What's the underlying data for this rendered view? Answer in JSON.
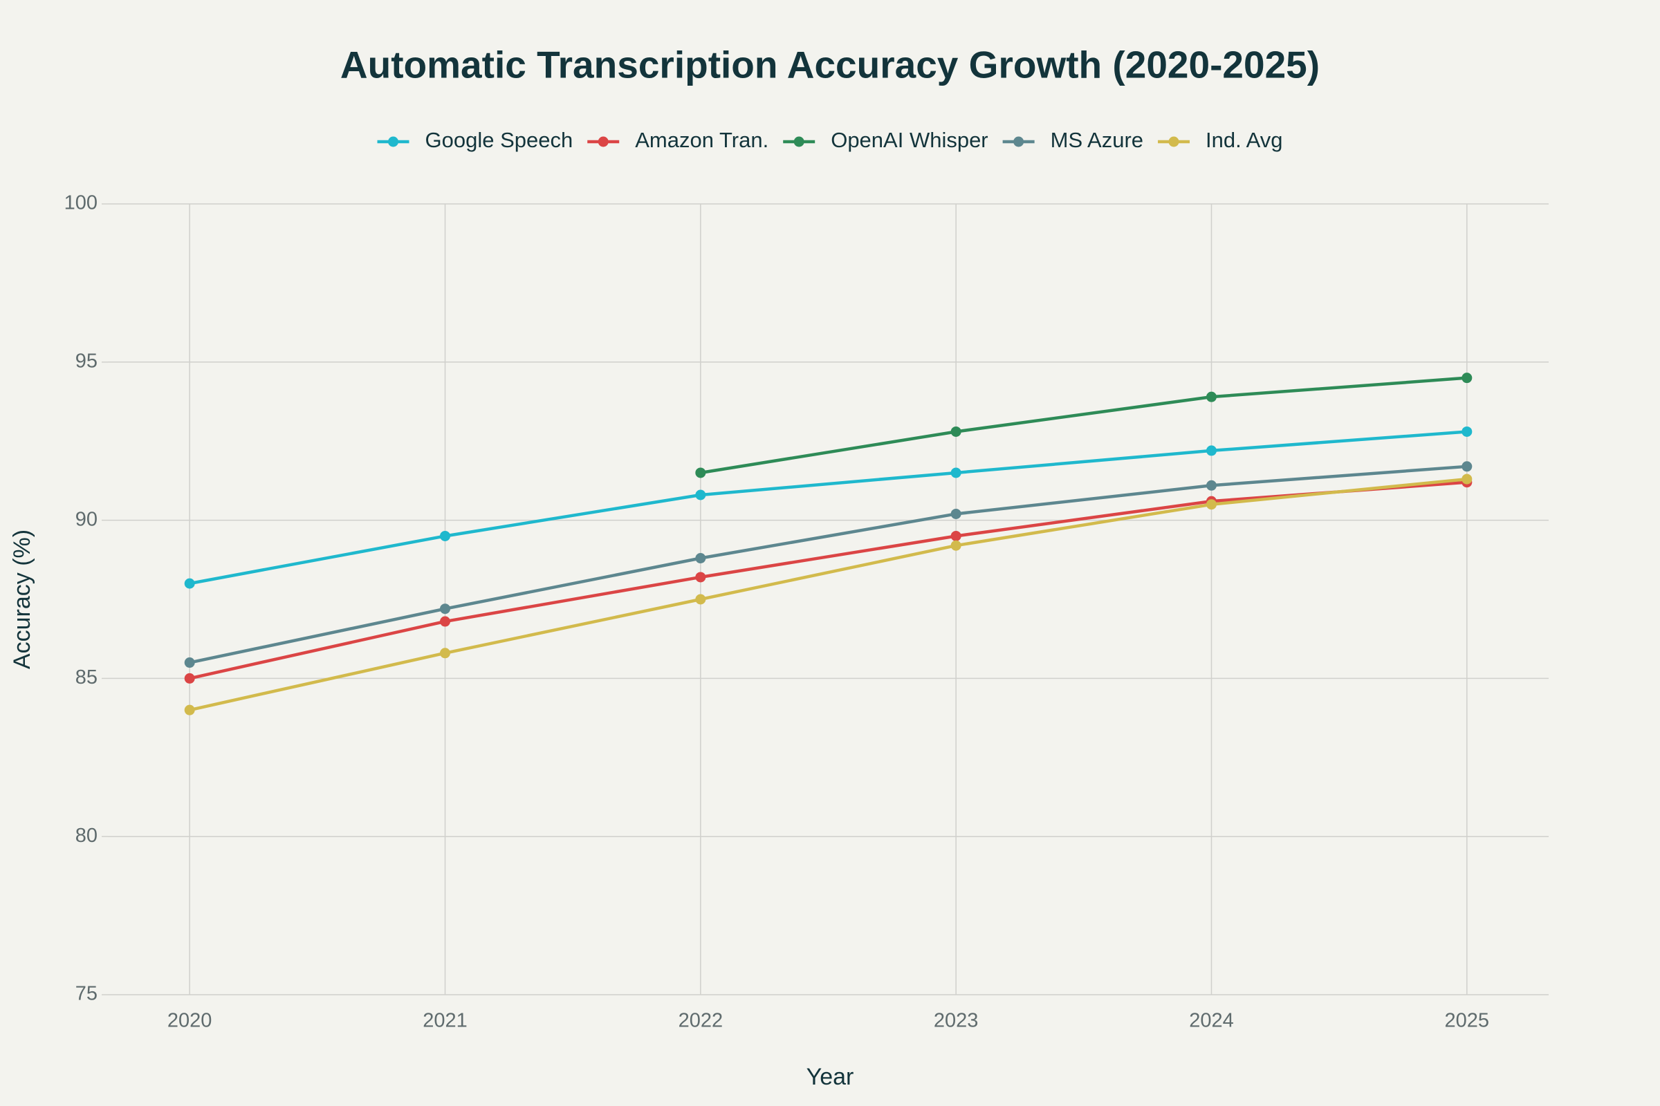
{
  "chart_data": {
    "type": "line",
    "title": "Automatic Transcription Accuracy Growth (2020-2025)",
    "xlabel": "Year",
    "ylabel": "Accuracy (%)",
    "categories": [
      "2020",
      "2021",
      "2022",
      "2023",
      "2024",
      "2025"
    ],
    "series": [
      {
        "name": "Google Speech",
        "color": "#1fb8cd",
        "values": [
          88.0,
          89.5,
          90.8,
          91.5,
          92.2,
          92.8
        ]
      },
      {
        "name": "Amazon Tran.",
        "color": "#db4545",
        "values": [
          85.0,
          86.8,
          88.2,
          89.5,
          90.6,
          91.2
        ]
      },
      {
        "name": "OpenAI Whisper",
        "color": "#2e8b57",
        "values": [
          null,
          null,
          91.5,
          92.8,
          93.9,
          94.5
        ]
      },
      {
        "name": "MS Azure",
        "color": "#5d878f",
        "values": [
          85.5,
          87.2,
          88.8,
          90.2,
          91.1,
          91.7
        ]
      },
      {
        "name": "Ind. Avg",
        "color": "#d2ba4c",
        "values": [
          84.0,
          85.8,
          87.5,
          89.2,
          90.5,
          91.3
        ]
      }
    ],
    "ylim": [
      75,
      100
    ],
    "yticks": [
      75,
      80,
      85,
      90,
      95,
      100
    ],
    "grid": true,
    "legend": "top"
  }
}
